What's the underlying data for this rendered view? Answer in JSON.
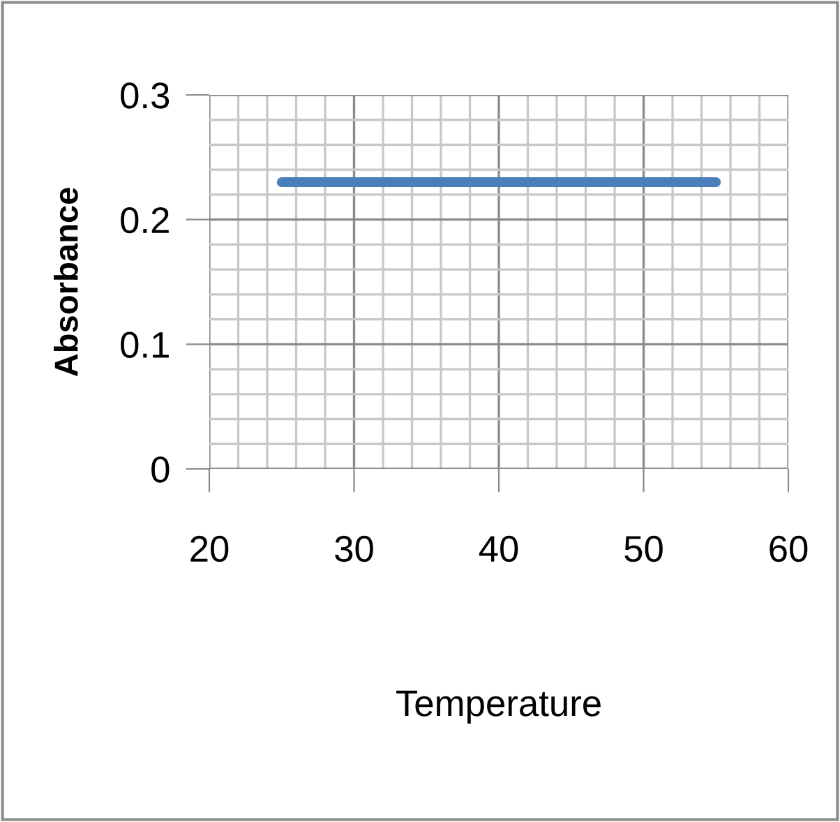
{
  "chart_data": {
    "type": "line",
    "xlabel": "Temperature",
    "ylabel": "Absorbance",
    "series": [
      {
        "color": "#4a7ebb",
        "x": [
          25,
          55
        ],
        "values": [
          0.23,
          0.23
        ]
      }
    ],
    "xlim": [
      20,
      60
    ],
    "xticks": [
      20,
      30,
      40,
      50,
      60
    ],
    "ylim": [
      0,
      0.3
    ],
    "yticks": [
      0,
      0.1,
      0.2,
      0.3
    ],
    "grid": true,
    "legend": false,
    "marker": "none",
    "line_style": "solid"
  }
}
